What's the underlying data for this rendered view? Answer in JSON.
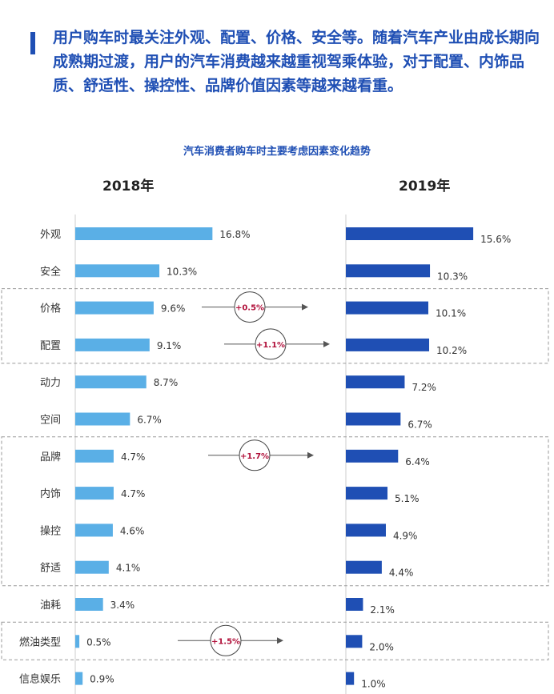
{
  "heading": "用户购车时最关注外观、配置、价格、安全等。随着汽车产业由成长期向成熟期过渡，用户的汽车消费越来越重视驾乘体验，对于配置、内饰品质、舒适性、操控性、品牌价值因素等越来越看重。",
  "colors": {
    "accent": "#1f4fb4",
    "bar2018": "#5aafe6",
    "bar2019": "#1f4fb4",
    "change": "#b0103a"
  },
  "chart_data": {
    "type": "bar",
    "title": "汽车消费者购车时主要考虑因素变化趋势",
    "orientation": "horizontal",
    "categories": [
      "外观",
      "安全",
      "价格",
      "配置",
      "动力",
      "空间",
      "品牌",
      "内饰",
      "操控",
      "舒适",
      "油耗",
      "燃油类型",
      "信息娱乐"
    ],
    "series": [
      {
        "name": "2018年",
        "values": [
          16.8,
          10.3,
          9.6,
          9.1,
          8.7,
          6.7,
          4.7,
          4.7,
          4.6,
          4.1,
          3.4,
          0.5,
          0.9
        ],
        "labels": [
          "16.8%",
          "10.3%",
          "9.6%",
          "9.1%",
          "8.7%",
          "6.7%",
          "4.7%",
          "4.7%",
          "4.6%",
          "4.1%",
          "3.4%",
          "0.5%",
          "0.9%"
        ]
      },
      {
        "name": "2019年",
        "values": [
          15.6,
          10.3,
          10.1,
          10.2,
          7.2,
          6.7,
          6.4,
          5.1,
          4.9,
          4.4,
          2.1,
          2.0,
          1.0
        ],
        "labels": [
          "15.6%",
          "10.3%",
          "10.1%",
          "10.2%",
          "7.2%",
          "6.7%",
          "6.4%",
          "5.1%",
          "4.9%",
          "4.4%",
          "2.1%",
          "2.0%",
          "1.0%"
        ]
      }
    ],
    "groups": [
      {
        "category": "价格",
        "change": "+0.5%"
      },
      {
        "category": "配置",
        "change": "+1.1%"
      },
      {
        "category": "品牌",
        "change": "+1.7%"
      },
      {
        "category": "燃油类型",
        "change": "+1.5%"
      }
    ]
  }
}
